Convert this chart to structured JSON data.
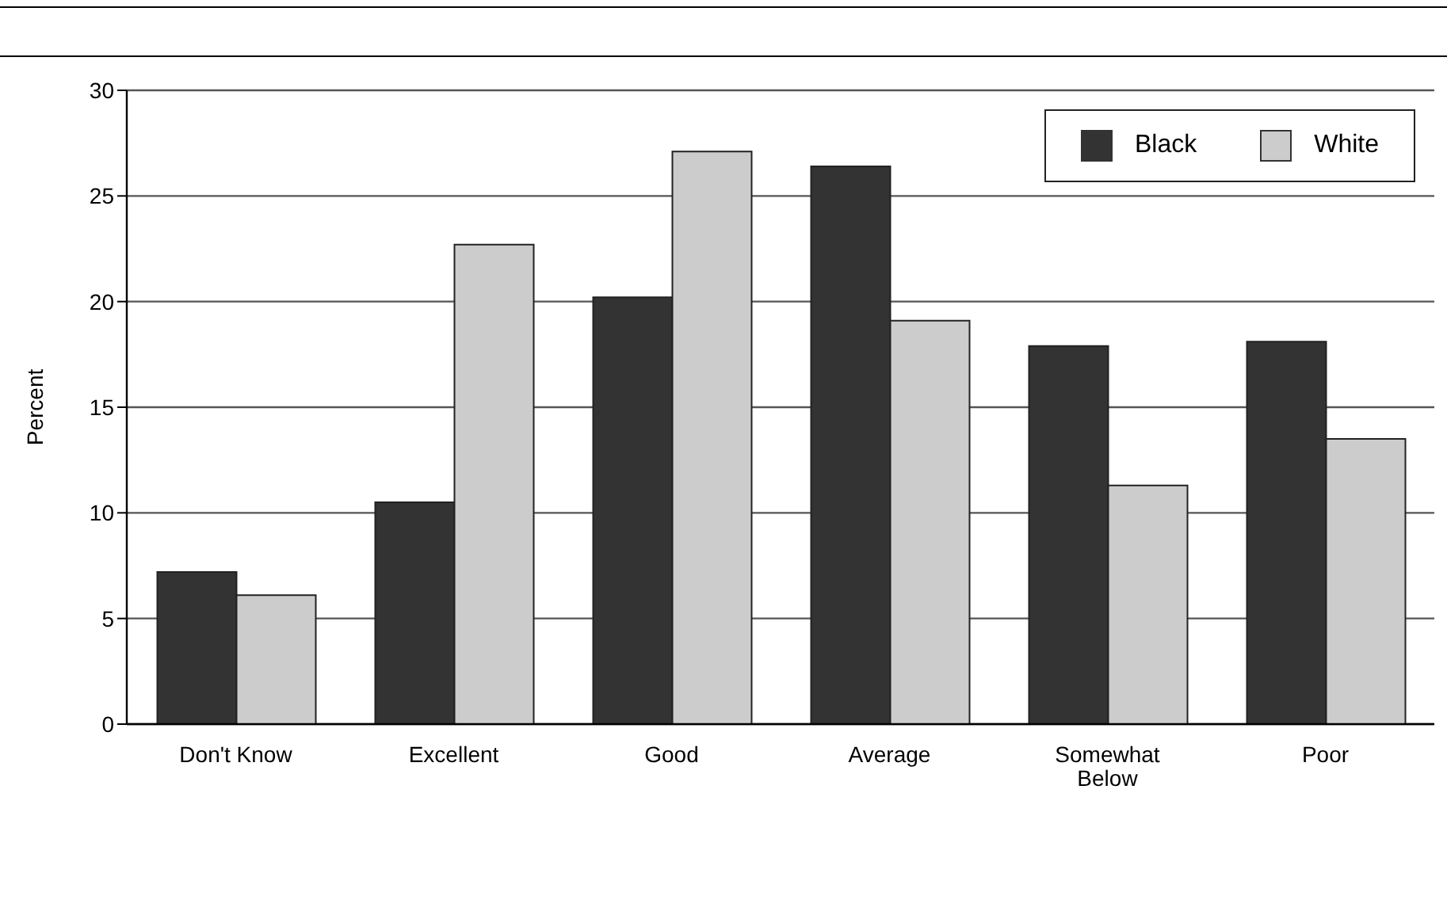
{
  "chart_data": {
    "type": "bar",
    "ylabel": "Percent",
    "categories": [
      "Don't Know",
      "Excellent",
      "Good",
      "Average",
      "Somewhat Below",
      "Poor"
    ],
    "series": [
      {
        "name": "Black",
        "color": "#333333",
        "values": [
          7.2,
          10.5,
          20.2,
          26.4,
          17.9,
          18.1
        ]
      },
      {
        "name": "White",
        "color": "#cccccc",
        "values": [
          6.1,
          22.7,
          27.1,
          19.1,
          11.3,
          13.5
        ]
      }
    ],
    "ylim": [
      0,
      30
    ],
    "yticks": [
      0,
      5,
      10,
      15,
      20,
      25,
      30
    ],
    "grid": "y",
    "legend": "top right"
  }
}
